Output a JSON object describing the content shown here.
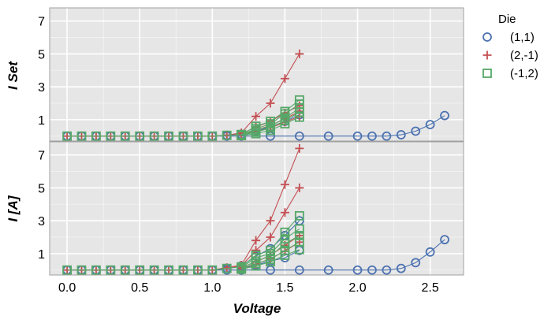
{
  "chart_data": {
    "type": "line",
    "xlabel": "Voltage",
    "xticks": [
      "0.0",
      "0.5",
      "1.0",
      "1.5",
      "2.0",
      "2.5"
    ],
    "xlim": [
      -0.12,
      2.73
    ],
    "legend": {
      "title": "Die",
      "placement": "right, outside",
      "entries": [
        {
          "label": "(1,1)",
          "marker": "circle",
          "color": "#4c72b0"
        },
        {
          "label": "(2,-1)",
          "marker": "plus",
          "color": "#c44e52"
        },
        {
          "label": "(-1,2)",
          "marker": "square",
          "color": "#55a868"
        }
      ]
    },
    "panels": [
      {
        "ylabel": "I Set",
        "ylim": [
          -0.3,
          7.8
        ],
        "yticks": [
          "1",
          "3",
          "5",
          "7"
        ],
        "grid": true,
        "series": [
          {
            "die": "(1,1)",
            "x": [
              0,
              0.1,
              0.2,
              0.3,
              0.4,
              0.5,
              0.6,
              0.7,
              0.8,
              0.9,
              1.0,
              1.1,
              1.2,
              1.4,
              1.6,
              1.8,
              2.0,
              2.1,
              2.2,
              2.3,
              2.4,
              2.5,
              2.6
            ],
            "y": [
              0,
              0,
              0,
              0,
              0,
              0,
              0,
              0,
              0,
              0,
              0,
              0,
              0,
              0,
              0,
              0,
              0,
              0,
              0,
              0.08,
              0.3,
              0.7,
              1.25
            ]
          },
          {
            "die": "(1,1)",
            "x": [
              1.1,
              1.2,
              1.3,
              1.4,
              1.5,
              1.6
            ],
            "y": [
              0.05,
              0.1,
              0.3,
              0.55,
              0.9,
              1.3
            ]
          },
          {
            "die": "(2,-1)",
            "x": [
              0,
              0.1,
              0.2,
              0.3,
              0.4,
              0.5,
              0.6,
              0.7,
              0.8,
              0.9,
              1.0,
              1.1,
              1.2,
              1.3,
              1.4,
              1.5,
              1.6
            ],
            "y": [
              0,
              0,
              0,
              0,
              0,
              0,
              0,
              0,
              0,
              0,
              0,
              0.05,
              0.2,
              1.2,
              2.0,
              3.5,
              5.0
            ]
          },
          {
            "die": "(2,-1)",
            "x": [
              1.1,
              1.2,
              1.3,
              1.4,
              1.5,
              1.6
            ],
            "y": [
              0.05,
              0.15,
              0.55,
              0.9,
              1.4,
              1.85
            ]
          },
          {
            "die": "(2,-1)",
            "x": [
              1.2,
              1.3,
              1.4,
              1.5,
              1.6
            ],
            "y": [
              0.1,
              0.35,
              0.65,
              1.05,
              1.5
            ]
          },
          {
            "die": "(2,-1)",
            "x": [
              1.2,
              1.3,
              1.4,
              1.5,
              1.6
            ],
            "y": [
              0.08,
              0.25,
              0.5,
              0.85,
              1.2
            ]
          },
          {
            "die": "(-1,2)",
            "x": [
              0,
              0.1,
              0.2,
              0.3,
              0.4,
              0.5,
              0.6,
              0.7,
              0.8,
              0.9,
              1.0,
              1.1,
              1.2,
              1.3,
              1.4,
              1.5,
              1.6
            ],
            "y": [
              0,
              0,
              0,
              0,
              0,
              0,
              0,
              0,
              0,
              0,
              0,
              0.05,
              0.1,
              0.6,
              0.9,
              1.5,
              2.2
            ]
          },
          {
            "die": "(-1,2)",
            "x": [
              1.2,
              1.3,
              1.4,
              1.5,
              1.6
            ],
            "y": [
              0.08,
              0.45,
              0.75,
              1.35,
              1.95
            ]
          },
          {
            "die": "(-1,2)",
            "x": [
              1.2,
              1.3,
              1.4,
              1.5,
              1.6
            ],
            "y": [
              0.05,
              0.35,
              0.6,
              1.1,
              1.7
            ]
          },
          {
            "die": "(-1,2)",
            "x": [
              1.2,
              1.3,
              1.4,
              1.5,
              1.6
            ],
            "y": [
              0.05,
              0.25,
              0.5,
              0.95,
              1.45
            ]
          },
          {
            "die": "(-1,2)",
            "x": [
              1.2,
              1.3,
              1.4,
              1.5,
              1.6
            ],
            "y": [
              0.03,
              0.15,
              0.35,
              0.75,
              1.15
            ]
          }
        ]
      },
      {
        "ylabel": "I [A]",
        "ylim": [
          -0.3,
          7.8
        ],
        "yticks": [
          "1",
          "3",
          "5",
          "7"
        ],
        "grid": true,
        "series": [
          {
            "die": "(1,1)",
            "x": [
              0,
              0.1,
              0.2,
              0.3,
              0.4,
              0.5,
              0.6,
              0.7,
              0.8,
              0.9,
              1.0,
              1.1,
              1.2,
              1.4,
              1.6,
              1.8,
              2.0,
              2.1,
              2.2,
              2.3,
              2.4,
              2.5,
              2.6
            ],
            "y": [
              0,
              0,
              0,
              0,
              0,
              0,
              0,
              0,
              0,
              0,
              0,
              0,
              0,
              0,
              0,
              0,
              0,
              0,
              0,
              0.1,
              0.45,
              1.1,
              1.85
            ]
          },
          {
            "die": "(1,1)",
            "x": [
              1.1,
              1.2,
              1.3,
              1.4,
              1.5,
              1.6
            ],
            "y": [
              0.1,
              0.25,
              0.85,
              1.3,
              2.1,
              3.0
            ]
          },
          {
            "die": "(1,1)",
            "x": [
              1.2,
              1.3,
              1.4,
              1.5,
              1.6
            ],
            "y": [
              0.1,
              0.3,
              0.55,
              0.75,
              1.2
            ]
          },
          {
            "die": "(2,-1)",
            "x": [
              0,
              0.1,
              0.2,
              0.3,
              0.4,
              0.5,
              0.6,
              0.7,
              0.8,
              0.9,
              1.0,
              1.1,
              1.2,
              1.3,
              1.4,
              1.5,
              1.6
            ],
            "y": [
              0,
              0,
              0,
              0,
              0,
              0,
              0,
              0,
              0,
              0,
              0,
              0.15,
              0.3,
              1.8,
              3.0,
              5.2,
              7.4
            ]
          },
          {
            "die": "(2,-1)",
            "x": [
              1.1,
              1.2,
              1.3,
              1.4,
              1.5,
              1.6
            ],
            "y": [
              0.1,
              0.25,
              1.2,
              2.0,
              3.5,
              5.0
            ]
          },
          {
            "die": "(2,-1)",
            "x": [
              1.2,
              1.3,
              1.4,
              1.5,
              1.6
            ],
            "y": [
              0.15,
              0.5,
              0.9,
              1.5,
              2.1
            ]
          },
          {
            "die": "(2,-1)",
            "x": [
              1.2,
              1.3,
              1.4,
              1.5,
              1.6
            ],
            "y": [
              0.1,
              0.35,
              0.7,
              1.15,
              1.7
            ]
          },
          {
            "die": "(-1,2)",
            "x": [
              0,
              0.1,
              0.2,
              0.3,
              0.4,
              0.5,
              0.6,
              0.7,
              0.8,
              0.9,
              1.0,
              1.1,
              1.2,
              1.3,
              1.4,
              1.5,
              1.6
            ],
            "y": [
              0,
              0,
              0,
              0,
              0,
              0,
              0,
              0,
              0,
              0,
              0,
              0.1,
              0.2,
              0.9,
              1.2,
              2.3,
              3.3
            ]
          },
          {
            "die": "(-1,2)",
            "x": [
              1.2,
              1.3,
              1.4,
              1.5,
              1.6
            ],
            "y": [
              0.15,
              0.75,
              1.0,
              1.9,
              2.5
            ]
          },
          {
            "die": "(-1,2)",
            "x": [
              1.2,
              1.3,
              1.4,
              1.5,
              1.6
            ],
            "y": [
              0.1,
              0.55,
              0.85,
              1.6,
              2.1
            ]
          },
          {
            "die": "(-1,2)",
            "x": [
              1.2,
              1.3,
              1.4,
              1.5,
              1.6
            ],
            "y": [
              0.08,
              0.4,
              0.65,
              1.2,
              1.7
            ]
          },
          {
            "die": "(-1,2)",
            "x": [
              1.2,
              1.3,
              1.4,
              1.5,
              1.6
            ],
            "y": [
              0.05,
              0.25,
              0.5,
              0.9,
              1.25
            ]
          }
        ]
      }
    ]
  }
}
